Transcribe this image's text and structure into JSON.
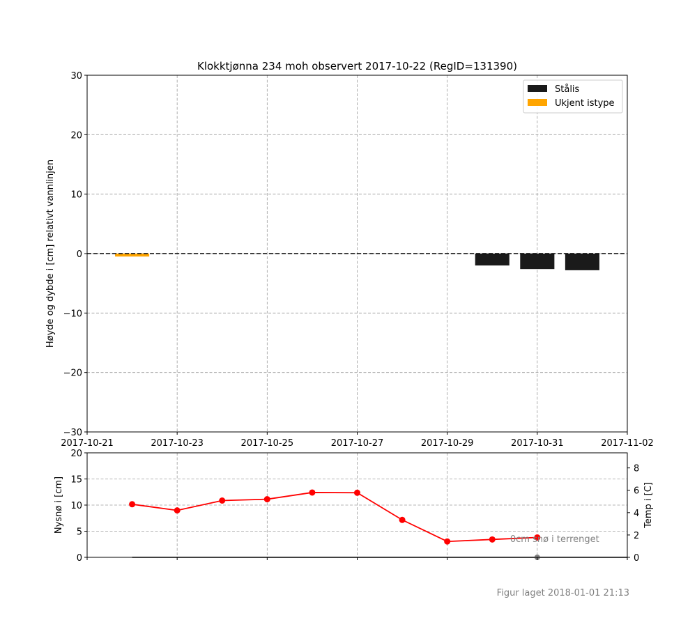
{
  "figure": {
    "footer": "Figur laget 2018-01-01 21:13"
  },
  "chart_data": [
    {
      "type": "bar",
      "title": "Klokktjønna 234 moh observert 2017-10-22 (RegID=131390)",
      "xlabel": "",
      "ylabel": "Høyde og dybde i [cm] relativt vannlinjen",
      "xlim": [
        "2017-10-21",
        "2017-11-02"
      ],
      "ylim": [
        -30,
        30
      ],
      "x_ticks": [
        "2017-10-21",
        "2017-10-23",
        "2017-10-25",
        "2017-10-27",
        "2017-10-29",
        "2017-10-31",
        "2017-11-02"
      ],
      "y_ticks": [
        -30,
        -20,
        -10,
        0,
        10,
        20,
        30
      ],
      "y_tick_labels": [
        "−30",
        "−20",
        "−10",
        "0",
        "10",
        "20",
        "30"
      ],
      "grid": true,
      "legend_position": "top-right",
      "reference_line": {
        "y": 0,
        "style": "dashed"
      },
      "series": [
        {
          "name": "Stålis",
          "color": "#1a1a1a",
          "bars": [
            {
              "date": "2017-10-30",
              "top": 0,
              "bottom": -2.0
            },
            {
              "date": "2017-10-31",
              "top": 0,
              "bottom": -2.6
            },
            {
              "date": "2017-11-01",
              "top": 0,
              "bottom": -2.8
            }
          ]
        },
        {
          "name": "Ukjent istype",
          "color": "#ffa500",
          "bars": [
            {
              "date": "2017-10-22",
              "top": 0,
              "bottom": -0.5
            }
          ]
        }
      ]
    },
    {
      "type": "line",
      "xlabel": "",
      "ylabel": "Nysnø i [cm]",
      "ylabel_right": "Temp i [C]",
      "ylim": [
        0,
        20
      ],
      "ylim_right": [
        0,
        9.35
      ],
      "y_ticks": [
        0,
        5,
        10,
        15,
        20
      ],
      "y_ticks_right": [
        0,
        2,
        4,
        6,
        8
      ],
      "grid": true,
      "annotation": {
        "text": "0cm snø i terrenget",
        "date": "2017-10-31"
      },
      "series": [
        {
          "axis": "right",
          "color": "#ff0000",
          "x": [
            "2017-10-22",
            "2017-10-23",
            "2017-10-24",
            "2017-10-25",
            "2017-10-26",
            "2017-10-27",
            "2017-10-28",
            "2017-10-29",
            "2017-10-30",
            "2017-10-31"
          ],
          "values": [
            4.75,
            4.2,
            5.08,
            5.2,
            5.8,
            5.78,
            3.35,
            1.42,
            1.6,
            1.78
          ]
        },
        {
          "axis": "left",
          "color": "#808080",
          "x": [
            "2017-10-31"
          ],
          "values": [
            0
          ]
        }
      ]
    }
  ]
}
